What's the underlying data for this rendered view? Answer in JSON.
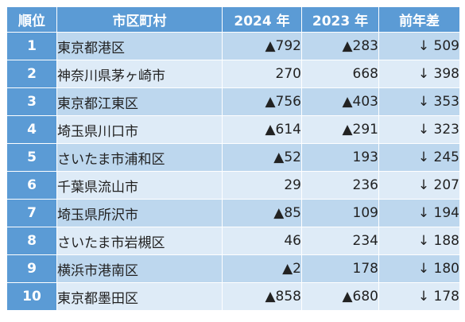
{
  "table": {
    "headers": {
      "rank": "順位",
      "municipality": "市区町村",
      "y2024": "2024 年",
      "y2023": "2023 年",
      "diff": "前年差"
    },
    "rows": [
      {
        "rank": "1",
        "name": "東京都港区",
        "y2024": "▲792",
        "y2023": "▲283",
        "diff": "↓ 509"
      },
      {
        "rank": "2",
        "name": "神奈川県茅ヶ崎市",
        "y2024": "270",
        "y2023": "668",
        "diff": "↓ 398"
      },
      {
        "rank": "3",
        "name": "東京都江東区",
        "y2024": "▲756",
        "y2023": "▲403",
        "diff": "↓ 353"
      },
      {
        "rank": "4",
        "name": "埼玉県川口市",
        "y2024": "▲614",
        "y2023": "▲291",
        "diff": "↓ 323"
      },
      {
        "rank": "5",
        "name": "さいたま市浦和区",
        "y2024": "▲52",
        "y2023": "193",
        "diff": "↓ 245"
      },
      {
        "rank": "6",
        "name": "千葉県流山市",
        "y2024": "29",
        "y2023": "236",
        "diff": "↓ 207"
      },
      {
        "rank": "7",
        "name": "埼玉県所沢市",
        "y2024": "▲85",
        "y2023": "109",
        "diff": "↓ 194"
      },
      {
        "rank": "8",
        "name": "さいたま市岩槻区",
        "y2024": "46",
        "y2023": "234",
        "diff": "↓ 188"
      },
      {
        "rank": "9",
        "name": "横浜市港南区",
        "y2024": "▲2",
        "y2023": "178",
        "diff": "↓ 180"
      },
      {
        "rank": "10",
        "name": "東京都墨田区",
        "y2024": "▲858",
        "y2023": "▲680",
        "diff": "↓ 178"
      }
    ]
  },
  "colors": {
    "header_bg": "#5b9bd5",
    "row_odd": "#bdd7ee",
    "row_even": "#deebf7"
  }
}
